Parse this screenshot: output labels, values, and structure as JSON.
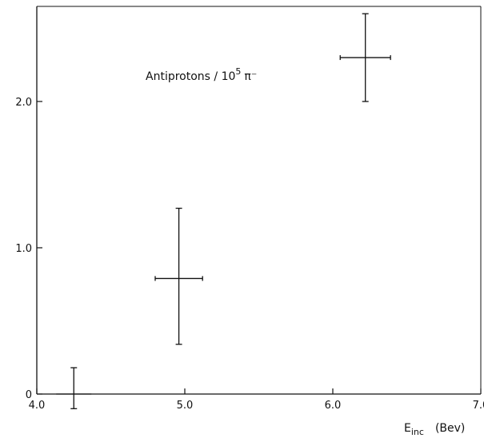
{
  "chart_data": {
    "type": "scatter",
    "title": "",
    "annotation": {
      "text_main": "Antiprotons / 10",
      "superscript": "5",
      "text_tail": "π⁻"
    },
    "xlabel": {
      "main": "E",
      "subscript": "inc",
      "unit": "(Bev)"
    },
    "ylabel": "",
    "xlim": [
      4.0,
      7.0
    ],
    "ylim": [
      0,
      2.65
    ],
    "x_ticks": [
      {
        "value": 4.0,
        "label": "4.0"
      },
      {
        "value": 5.0,
        "label": "5.0"
      },
      {
        "value": 6.0,
        "label": "6.0"
      },
      {
        "value": 7.0,
        "label": "7.0"
      }
    ],
    "y_ticks": [
      {
        "value": 0,
        "label": "0"
      },
      {
        "value": 1.0,
        "label": "1.0"
      },
      {
        "value": 2.0,
        "label": "2.0"
      }
    ],
    "grid": false,
    "series": [
      {
        "points": [
          {
            "x": 4.25,
            "y": 0.0,
            "x_err": 0.0,
            "y_low": -0.1,
            "y_high": 0.18
          },
          {
            "x": 4.96,
            "y": 0.79,
            "x_err": 0.16,
            "y_low": 0.34,
            "y_high": 1.27
          },
          {
            "x": 6.22,
            "y": 2.3,
            "x_err": 0.17,
            "y_low": 2.0,
            "y_high": 2.6
          }
        ]
      }
    ]
  }
}
